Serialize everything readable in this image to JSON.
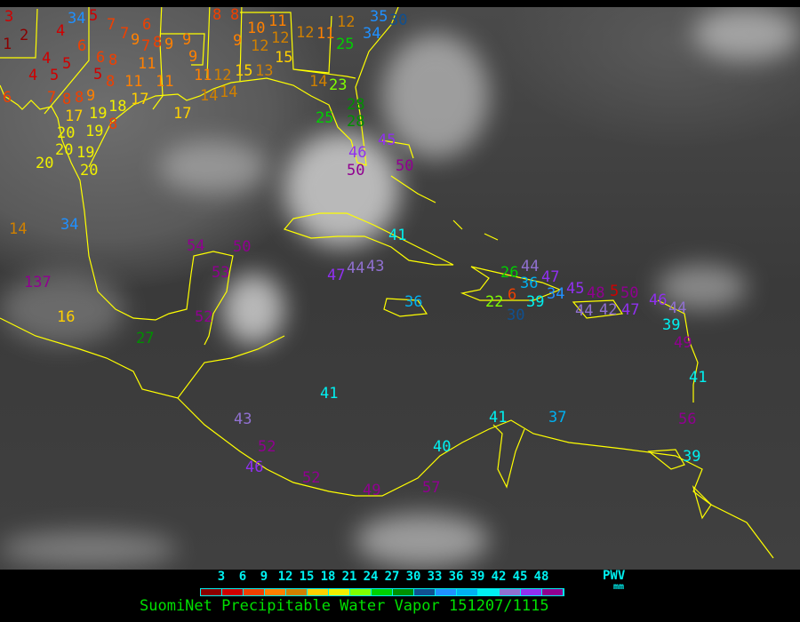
{
  "legend": {
    "ticks": [
      "3",
      "6",
      "9",
      "12",
      "15",
      "18",
      "21",
      "24",
      "27",
      "30",
      "33",
      "36",
      "39",
      "42",
      "45",
      "48"
    ],
    "colors": [
      "#8b0000",
      "#d00000",
      "#f04000",
      "#ff8000",
      "#d08000",
      "#ffd000",
      "#f0f000",
      "#80ff00",
      "#00d000",
      "#009000",
      "#105090",
      "#2090ff",
      "#00b0f0",
      "#00f0f0",
      "#9070d0",
      "#9030f0",
      "#900090"
    ],
    "unit_label": "PWV",
    "unit": "mm"
  },
  "title": "SuomiNet Precipitable Water Vapor 151207/1115",
  "coastline_color": "#ffff00",
  "stations": [
    "3",
    "2",
    "1",
    "4",
    "34",
    "5",
    "6",
    "7",
    "7",
    "9",
    "7",
    "8",
    "9",
    "6",
    "4",
    "5",
    "6",
    "8",
    "4",
    "5",
    "5",
    "8",
    "11",
    "11",
    "11",
    "6",
    "7",
    "8",
    "8",
    "9",
    "17",
    "19",
    "18",
    "17",
    "17",
    "20",
    "19",
    "8",
    "20",
    "19",
    "20",
    "20",
    "14",
    "34",
    "137",
    "16",
    "27",
    "8",
    "8",
    "10",
    "11",
    "12",
    "12",
    "15",
    "9",
    "12",
    "11",
    "12",
    "25",
    "34",
    "35",
    "30",
    "9",
    "9",
    "11",
    "12",
    "14",
    "15",
    "13",
    "14",
    "14",
    "23",
    "25",
    "28",
    "28",
    "45",
    "46",
    "50",
    "50",
    "41",
    "54",
    "50",
    "53",
    "47",
    "44",
    "43",
    "52",
    "36",
    "26",
    "44",
    "36",
    "47",
    "6",
    "39",
    "34",
    "30",
    "22",
    "45",
    "48",
    "44",
    "42",
    "5",
    "50",
    "47",
    "46",
    "44",
    "39",
    "49",
    "41",
    "56",
    "39",
    "41",
    "41",
    "37",
    "43",
    "52",
    "46",
    "52",
    "49",
    "40",
    "57"
  ]
}
